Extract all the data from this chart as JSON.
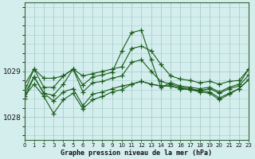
{
  "title": "Graphe pression niveau de la mer (hPa)",
  "background_color": "#d4eeee",
  "grid_color": "#aacccc",
  "line_color": "#1a5c1a",
  "xlim": [
    0,
    23
  ],
  "ylim": [
    1027.5,
    1030.5
  ],
  "yticks": [
    1028,
    1029
  ],
  "xticks": [
    0,
    1,
    2,
    3,
    4,
    5,
    6,
    7,
    8,
    9,
    10,
    11,
    12,
    13,
    14,
    15,
    16,
    17,
    18,
    19,
    20,
    21,
    22,
    23
  ],
  "series": [
    {
      "x": [
        0,
        1,
        2,
        3,
        4,
        5,
        6,
        7,
        8,
        9,
        10,
        11,
        12,
        13,
        14,
        15,
        16,
        17,
        18,
        19,
        20,
        21,
        22,
        23
      ],
      "y": [
        1028.7,
        1029.05,
        1028.85,
        1028.85,
        1028.9,
        1029.05,
        1028.9,
        1028.95,
        1029.0,
        1029.05,
        1029.1,
        1029.5,
        1029.55,
        1029.45,
        1029.15,
        1028.9,
        1028.83,
        1028.8,
        1028.75,
        1028.78,
        1028.72,
        1028.78,
        1028.8,
        1029.05
      ]
    },
    {
      "x": [
        0,
        1,
        2,
        3,
        4,
        5,
        6,
        7,
        8,
        9,
        10,
        11,
        12,
        13,
        14,
        15,
        16,
        17,
        18,
        19,
        20,
        21,
        22,
        23
      ],
      "y": [
        1028.55,
        1029.05,
        1028.65,
        1028.65,
        1028.9,
        1029.05,
        1028.7,
        1028.88,
        1028.92,
        1028.98,
        1029.45,
        1029.85,
        1029.9,
        1029.25,
        1028.65,
        1028.75,
        1028.68,
        1028.65,
        1028.62,
        1028.65,
        1028.55,
        1028.65,
        1028.72,
        1029.05
      ]
    },
    {
      "x": [
        0,
        1,
        2,
        3,
        4,
        5,
        6,
        7,
        8,
        9,
        10,
        11,
        12,
        13,
        14,
        15,
        16,
        17,
        18,
        19,
        20,
        21,
        22,
        23
      ],
      "y": [
        1028.5,
        1028.88,
        1028.52,
        1028.48,
        1028.72,
        1029.05,
        1028.55,
        1028.75,
        1028.78,
        1028.85,
        1028.9,
        1029.2,
        1029.25,
        1029.0,
        1028.78,
        1028.72,
        1028.65,
        1028.62,
        1028.58,
        1028.62,
        1028.52,
        1028.62,
        1028.68,
        1028.92
      ]
    },
    {
      "x": [
        0,
        1,
        2,
        3,
        4,
        5,
        6,
        7,
        8,
        9,
        10,
        11,
        12,
        13,
        14,
        15,
        16,
        17,
        18,
        19,
        20,
        21,
        22,
        23
      ],
      "y": [
        1028.4,
        1028.88,
        1028.52,
        1028.35,
        1028.55,
        1028.62,
        1028.25,
        1028.5,
        1028.55,
        1028.62,
        1028.68,
        1028.72,
        1028.78,
        1028.72,
        1028.68,
        1028.68,
        1028.62,
        1028.6,
        1028.58,
        1028.55,
        1028.42,
        1028.52,
        1028.62,
        1028.82
      ]
    },
    {
      "x": [
        0,
        1,
        2,
        3,
        4,
        5,
        6,
        7,
        8,
        9,
        10,
        11,
        12,
        13,
        14,
        15,
        16,
        17,
        18,
        19,
        20,
        21,
        22,
        23
      ],
      "y": [
        1028.45,
        1028.72,
        1028.45,
        1028.08,
        1028.38,
        1028.52,
        1028.18,
        1028.38,
        1028.45,
        1028.55,
        1028.6,
        1028.72,
        1028.78,
        1028.72,
        1028.68,
        1028.68,
        1028.62,
        1028.6,
        1028.55,
        1028.52,
        1028.38,
        1028.5,
        1028.62,
        1028.82
      ]
    }
  ]
}
